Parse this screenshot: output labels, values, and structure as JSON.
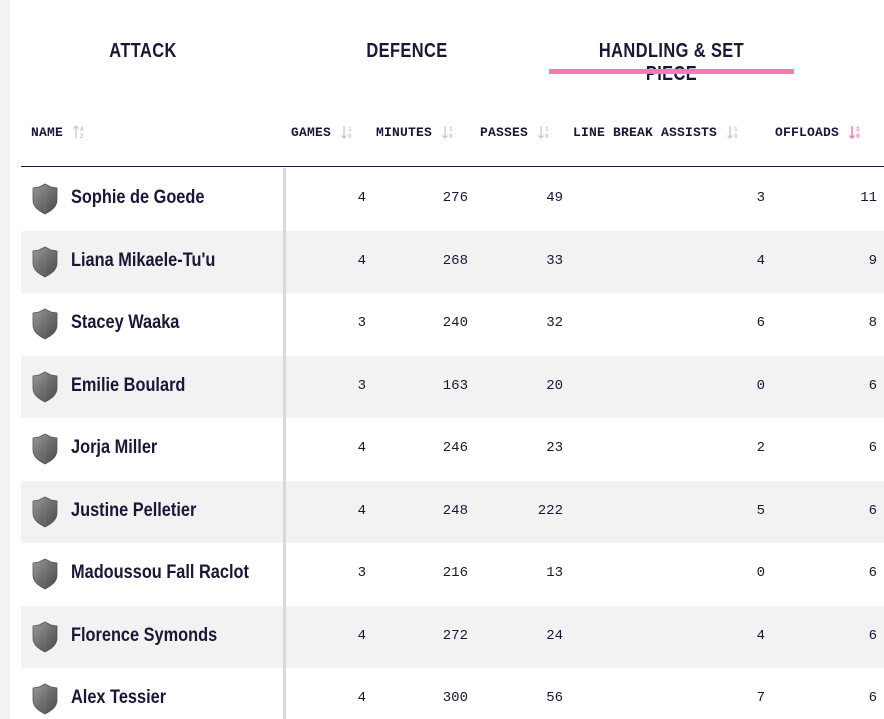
{
  "tabs": {
    "attack": "ATTACK",
    "defence": "DEFENCE",
    "handling": "HANDLING & SET PIECE",
    "active": "HANDLING & SET PIECE"
  },
  "colors": {
    "accent": "#f07cb6",
    "text": "#1b1537",
    "row_alt": "#f2f2f2",
    "sort_inactive": "#c8c6d0"
  },
  "columns": {
    "name": "NAME",
    "games": "GAMES",
    "minutes": "MINUTES",
    "passes": "PASSES",
    "line_break_assists": "LINE BREAK ASSISTS",
    "offloads": "OFFLOADS",
    "active_sort": "OFFLOADS"
  },
  "rows": [
    {
      "name": "Sophie de Goede",
      "games": "4",
      "minutes": "276",
      "passes": "49",
      "line_break_assists": "3",
      "offloads": "11"
    },
    {
      "name": "Liana Mikaele-Tu'u",
      "games": "4",
      "minutes": "268",
      "passes": "33",
      "line_break_assists": "4",
      "offloads": "9"
    },
    {
      "name": "Stacey Waaka",
      "games": "3",
      "minutes": "240",
      "passes": "32",
      "line_break_assists": "6",
      "offloads": "8"
    },
    {
      "name": "Emilie Boulard",
      "games": "3",
      "minutes": "163",
      "passes": "20",
      "line_break_assists": "0",
      "offloads": "6"
    },
    {
      "name": "Jorja Miller",
      "games": "4",
      "minutes": "246",
      "passes": "23",
      "line_break_assists": "2",
      "offloads": "6"
    },
    {
      "name": "Justine Pelletier",
      "games": "4",
      "minutes": "248",
      "passes": "222",
      "line_break_assists": "5",
      "offloads": "6"
    },
    {
      "name": "Madoussou Fall Raclot",
      "games": "3",
      "minutes": "216",
      "passes": "13",
      "line_break_assists": "0",
      "offloads": "6"
    },
    {
      "name": "Florence Symonds",
      "games": "4",
      "minutes": "272",
      "passes": "24",
      "line_break_assists": "4",
      "offloads": "6"
    },
    {
      "name": "Alex Tessier",
      "games": "4",
      "minutes": "300",
      "passes": "56",
      "line_break_assists": "7",
      "offloads": "6"
    }
  ]
}
